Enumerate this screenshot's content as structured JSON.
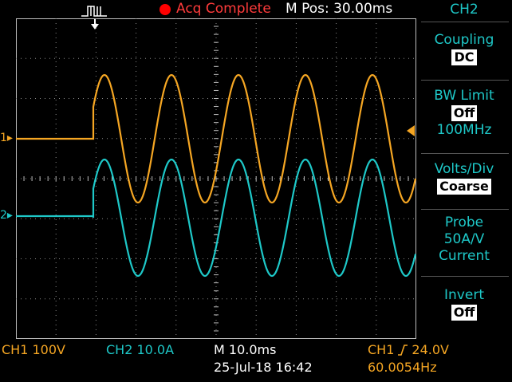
{
  "top_bar": {
    "status": "Acq Complete",
    "m_pos": "M Pos: 30.00ms",
    "status_color": "#ff0000"
  },
  "waveforms": {
    "ch1": {
      "color": "#f5a623",
      "marker_label": "1"
    },
    "ch2": {
      "color": "#1ec8c8",
      "marker_label": "2"
    }
  },
  "menu": {
    "title": "CH2",
    "items": [
      {
        "label": "Coupling",
        "value": "DC"
      },
      {
        "label": "BW Limit",
        "value": "Off",
        "extra": "100MHz"
      },
      {
        "label": "Volts/Div",
        "value": "Coarse"
      },
      {
        "label": "Probe",
        "lines": [
          "50A/V",
          "Current"
        ]
      },
      {
        "label": "Invert",
        "value": "Off"
      }
    ]
  },
  "bottom": {
    "ch1_scale": "CH1  100V",
    "ch2_scale": "CH2  10.0A",
    "timebase": "M 10.0ms",
    "datetime": "25-Jul-18 16:42",
    "trigger_source": "CH1",
    "trigger_level": "24.0V",
    "frequency": "60.0054Hz"
  }
}
